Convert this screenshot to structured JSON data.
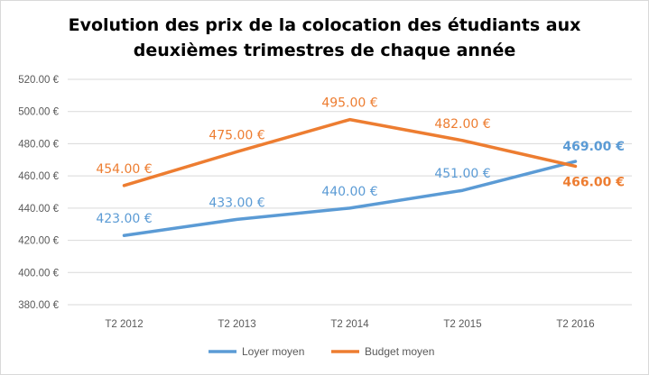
{
  "chart_data": {
    "type": "line",
    "title_line1": "Evolution des prix de la colocation des étudiants aux",
    "title_line2": "deuxièmes trimestres de chaque année",
    "categories": [
      "T2 2012",
      "T2 2013",
      "T2 2014",
      "T2 2015",
      "T2 2016"
    ],
    "ylim": [
      380,
      520
    ],
    "yticks": [
      380,
      400,
      420,
      440,
      460,
      480,
      500,
      520
    ],
    "ytick_labels": [
      "380.00 €",
      "400.00 €",
      "420.00 €",
      "440.00 €",
      "460.00 €",
      "480.00 €",
      "500.00 €",
      "520.00 €"
    ],
    "grid": true,
    "legend_position": "bottom",
    "series": [
      {
        "name": "Loyer moyen",
        "color": "#5b9bd5",
        "values": [
          423,
          433,
          440,
          451,
          469
        ],
        "labels": [
          "423.00 €",
          "433.00 €",
          "440.00 €",
          "451.00 €",
          "469.00 €"
        ],
        "last_label_bold": true
      },
      {
        "name": "Budget moyen",
        "color": "#ed7d31",
        "values": [
          454,
          475,
          495,
          482,
          466
        ],
        "labels": [
          "454.00 €",
          "475.00 €",
          "495.00 €",
          "482.00 €",
          "466.00 €"
        ],
        "last_label_bold": true
      }
    ]
  }
}
